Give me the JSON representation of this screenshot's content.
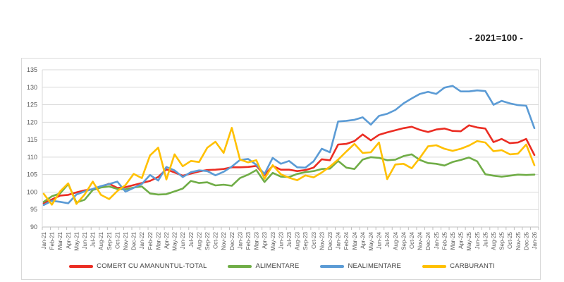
{
  "annotation": {
    "text": "- 2021=100 -"
  },
  "chart_data": {
    "type": "line",
    "title": "",
    "index_note": "- 2021=100 -",
    "grid": true,
    "legend_position": "bottom",
    "y_axis": {
      "min": 90,
      "max": 135,
      "step": 5,
      "ticks": [
        90,
        95,
        100,
        105,
        110,
        115,
        120,
        125,
        130,
        135
      ]
    },
    "months": [
      "Jan-21",
      "Feb-21",
      "Mar-21",
      "Apr-21",
      "May-21",
      "Jun-21",
      "Jul-21",
      "Aug-21",
      "Sep-21",
      "Oct-21",
      "Nov-21",
      "Dec-21",
      "Jan-22",
      "Feb-22",
      "Mar-22",
      "Apr-22",
      "May-22",
      "Jun-22",
      "Jul-22",
      "Aug-22",
      "Sep-22",
      "Oct-22",
      "Nov-22",
      "Dec-22",
      "Jan-23",
      "Feb-23",
      "Mar-23",
      "Apr-23",
      "May-23",
      "Jun-23",
      "Jul-23",
      "Aug-23",
      "Sep-23",
      "Oct-23",
      "Nov-23",
      "Dec-23",
      "Jan-24",
      "Feb-24",
      "Mar-24",
      "Apr-24",
      "May-24",
      "Jun-24",
      "Jul-24",
      "Aug-24",
      "Sep-24",
      "Oct-24",
      "Nov-24",
      "Dec-24",
      "Jan-25",
      "Feb-25",
      "Mar-25",
      "Apr-25",
      "May-25",
      "Jun-25",
      "Jul-25",
      "Aug-25",
      "Sep-25",
      "Oct-25",
      "Nov-25",
      "Dec-25",
      "Jan-26"
    ],
    "series": [
      {
        "name": "COMERT CU AMANUNTUL-TOTAL",
        "color": "#eb2d23",
        "values": [
          96.8,
          97.9,
          99,
          99.2,
          99.9,
          100.5,
          100.8,
          101.5,
          102.4,
          101.2,
          101.4,
          102,
          102.6,
          103.2,
          104.3,
          106.5,
          105.6,
          104.7,
          105.3,
          105.9,
          106.3,
          106.4,
          106.6,
          107.1,
          107.1,
          107.2,
          107.5,
          104.9,
          107.5,
          106.4,
          106.4,
          106,
          106.3,
          107,
          109.4,
          109.1,
          113.6,
          113.8,
          114.6,
          116.5,
          114.8,
          116.4,
          117.1,
          117.7,
          118.3,
          118.7,
          117.8,
          117.2,
          117.9,
          118.2,
          117.5,
          117.4,
          119.1,
          118.5,
          118.2,
          114.3,
          115.2,
          114,
          114.2,
          115.2,
          110.6
        ]
      },
      {
        "name": "ALIMENTARE",
        "color": "#70ad47",
        "values": [
          97.2,
          98.8,
          99.6,
          102.3,
          97,
          97.8,
          100.6,
          101.3,
          101.6,
          100.9,
          100.8,
          101.3,
          101.6,
          99.6,
          99.3,
          99.4,
          100.2,
          101,
          103.2,
          102.6,
          102.8,
          101.9,
          102.1,
          101.8,
          104,
          105,
          106.3,
          102.9,
          105.5,
          104.4,
          104.3,
          105.2,
          105.7,
          106,
          106.6,
          106.7,
          108.9,
          107,
          106.6,
          109.3,
          110,
          109.8,
          109.1,
          109.3,
          110.3,
          110.8,
          109.2,
          108.3,
          108.1,
          107.6,
          108.6,
          109.2,
          109.9,
          108.8,
          105.1,
          104.7,
          104.4,
          104.7,
          105,
          104.9,
          105
        ]
      },
      {
        "name": "NEALIMENTARE",
        "color": "#5b9bd5",
        "values": [
          96.3,
          97.5,
          97.2,
          96.8,
          99.3,
          100.2,
          100.9,
          101.7,
          102.3,
          103,
          100.1,
          101.2,
          102.3,
          104.9,
          103.3,
          107.2,
          106.2,
          104.3,
          105.7,
          106.2,
          106,
          104.8,
          105.8,
          107.3,
          109.2,
          109.5,
          107.8,
          105.2,
          109.8,
          108.1,
          108.9,
          107.1,
          107,
          108.8,
          112.4,
          111.4,
          120.2,
          120.4,
          120.7,
          121.4,
          119.3,
          121.8,
          122.4,
          123.5,
          125.4,
          126.8,
          128.1,
          128.7,
          128.1,
          129.9,
          130.4,
          128.8,
          128.8,
          129.1,
          128.9,
          125,
          126.1,
          125.4,
          124.9,
          124.7,
          118.3
        ]
      },
      {
        "name": "CARBURANTI",
        "color": "#ffc000",
        "values": [
          99.5,
          96.4,
          100.2,
          102.5,
          96.6,
          99.3,
          103,
          99.2,
          98,
          100.3,
          102,
          105.2,
          104,
          110.5,
          112.7,
          103.6,
          110.8,
          107.4,
          108.9,
          108.6,
          112.7,
          114.4,
          111.2,
          118.4,
          109.3,
          108.5,
          109.1,
          103.8,
          107.7,
          105.1,
          104.1,
          103.4,
          104.8,
          104.2,
          105.6,
          107.3,
          109.3,
          111.6,
          113.8,
          111.2,
          111.4,
          114.2,
          103.7,
          107.9,
          108.1,
          106.8,
          109.8,
          113.1,
          113.4,
          112.4,
          111.8,
          112.4,
          113.3,
          114.6,
          114.2,
          111.7,
          112,
          110.8,
          111,
          113.6,
          107.7
        ]
      }
    ]
  }
}
